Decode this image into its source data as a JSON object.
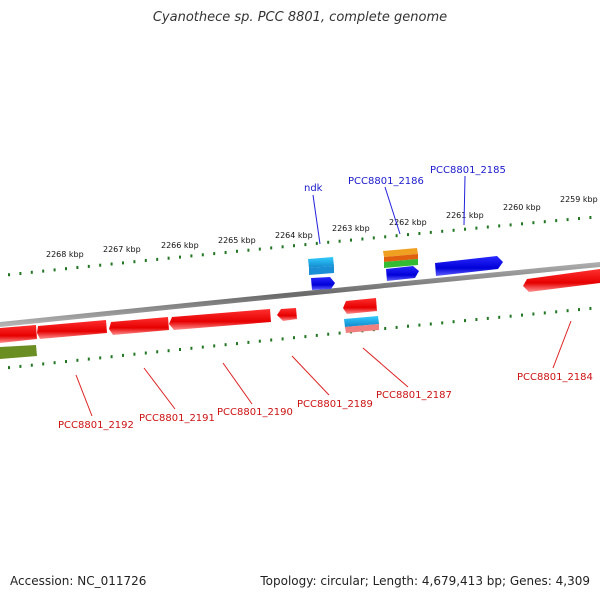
{
  "title": "Cyanothece sp. PCC 8801, complete genome",
  "footer": {
    "accession": "Accession: NC_011726",
    "stats": "Topology: circular; Length: 4,679,413 bp; Genes: 4,309"
  },
  "ruler": {
    "labels": [
      "2268 kbp",
      "2267 kbp",
      "2266 kbp",
      "2265 kbp",
      "2264 kbp",
      "2263 kbp",
      "2262 kbp",
      "2261 kbp",
      "2260 kbp",
      "2259 kbp"
    ]
  },
  "gene_labels_top": [
    "ndk",
    "PCC8801_2186",
    "PCC8801_2185"
  ],
  "gene_labels_bottom": [
    "PCC8801_2192",
    "PCC8801_2191",
    "PCC8801_2190",
    "PCC8801_2189",
    "PCC8801_2187",
    "PCC8801_2184"
  ],
  "colors": {
    "forward_label": "#1a1acc",
    "reverse_label": "#cc1111",
    "forward_cds": "#1010e0",
    "reverse_cds": "#ee1111",
    "rna": "#22aadd",
    "ruler_tick": "#227722",
    "backbone": "#808080"
  }
}
